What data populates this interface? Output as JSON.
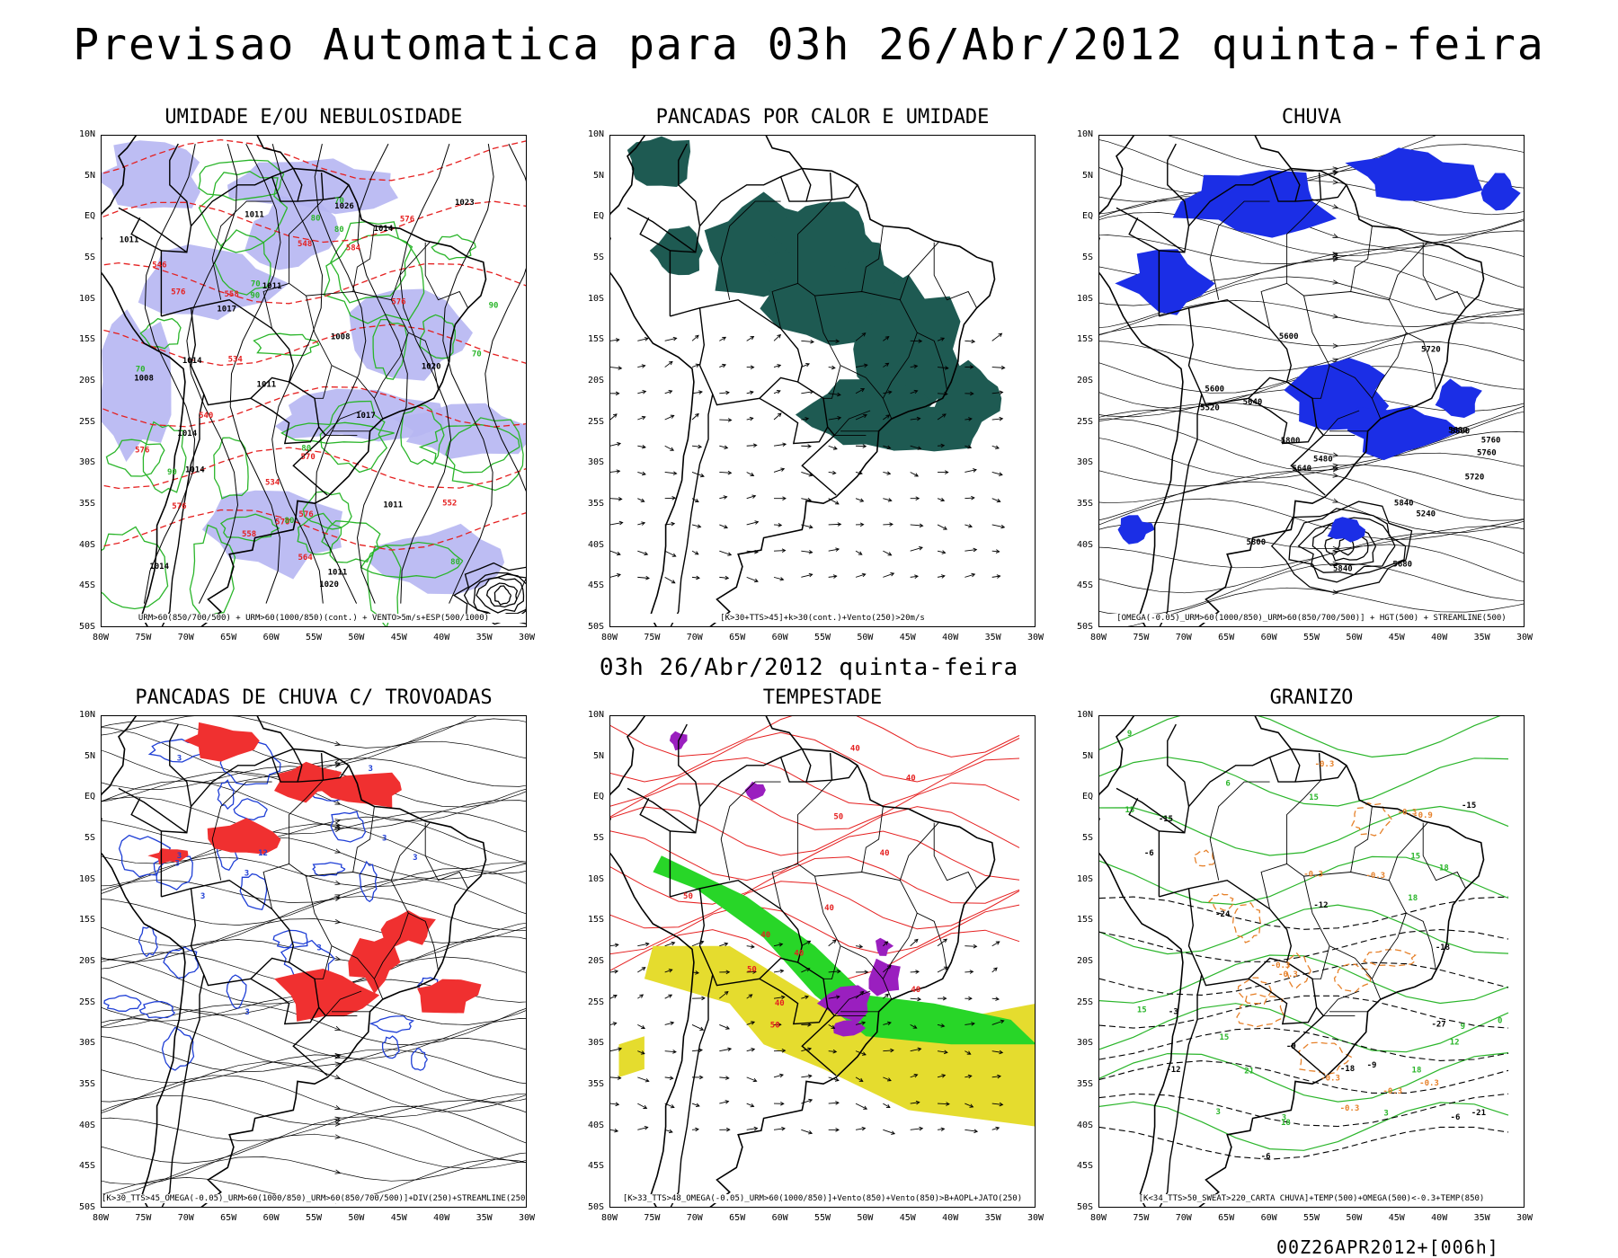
{
  "title": "Previsao Automatica para 03h 26/Abr/2012 quinta-feira",
  "middle_label": "03h 26/Abr/2012 quinta-feira",
  "footer": "00Z26APR2012+[006h]",
  "axes": {
    "lat_ticks": [
      "10N",
      "5N",
      "EQ",
      "5S",
      "10S",
      "15S",
      "20S",
      "25S",
      "30S",
      "35S",
      "40S",
      "45S",
      "50S"
    ],
    "lon_ticks": [
      "80W",
      "75W",
      "70W",
      "65W",
      "60W",
      "55W",
      "50W",
      "45W",
      "40W",
      "35W",
      "30W"
    ],
    "lat_range": [
      -50,
      10
    ],
    "lon_range": [
      -80,
      -30
    ]
  },
  "panels": [
    {
      "title": "UMIDADE E/OU NEBULOSIDADE",
      "caption": "URM>60(850/700/500) + URM>60(1000/850)(cont.) + VENTO>5m/s+ESP(500/1000)",
      "fill_color": "#b6b6f2",
      "contour_colors": [
        "#2ab52a",
        "#e52020",
        "#000000"
      ],
      "contour_labels_black": [
        "1014",
        "1011",
        "1011",
        "1011",
        "1011",
        "1014",
        "1014",
        "1011",
        "1008",
        "1008",
        "1014",
        "1017",
        "1020",
        "1023",
        "1011",
        "1017",
        "1014",
        "1020",
        "1026"
      ],
      "contour_labels_red": [
        "576",
        "576",
        "576",
        "576",
        "576",
        "570",
        "564",
        "570",
        "576",
        "558",
        "552",
        "558",
        "548",
        "540",
        "546",
        "534",
        "534",
        "584"
      ],
      "contour_labels_green": [
        "70",
        "80",
        "90",
        "80",
        "70",
        "80",
        "70",
        "90",
        "80",
        "70",
        "80",
        "90"
      ]
    },
    {
      "title": "PANCADAS POR CALOR E UMIDADE",
      "caption": "[K>30+TTS>45]+k>30(cont.)+Vento(250)>20m/s",
      "fill_color": "#1e5a52"
    },
    {
      "title": "CHUVA",
      "caption": "[OMEGA(-0.05)_URM>60(1000/850)_URM>60(850/700/500)] + HGT(500) + STREAMLINE(500)",
      "fill_color": "#1b2ee6",
      "contour_labels_black": [
        "5840",
        "5800",
        "5760",
        "5840",
        "5800",
        "5760",
        "5720",
        "5720",
        "5680",
        "5640",
        "5600",
        "5560",
        "5520",
        "5480",
        "5680",
        "5640",
        "5600",
        "5240"
      ]
    },
    {
      "title": "PANCADAS DE CHUVA C/ TROVOADAS",
      "caption": "[K>30_TTS>45_OMEGA(-0.05)_URM>60(1000/850)_URM>60(850/700/500)]+DIV(250)+STREAMLINE(250)",
      "fill_color": "#f03030",
      "contour_colors": [
        "#1f3fd6"
      ],
      "contour_labels_blue": [
        "3",
        "3",
        "3",
        "3",
        "3",
        "3",
        "3",
        "12",
        "3",
        "3",
        "3"
      ]
    },
    {
      "title": "TEMPESTADE",
      "caption": "[K>33_TTS>48_OMEGA(-0.05)_URM>60(1000/850)]+Vento(850)+Vento(850)>B+AOPL+JATO(250)",
      "fill_colors": [
        "#e5dc2e",
        "#28d628",
        "#9a1fbf"
      ],
      "contour_colors": [
        "#e52020"
      ],
      "contour_labels_red": [
        "40",
        "50",
        "40",
        "50",
        "50",
        "40",
        "40",
        "50",
        "40",
        "40",
        "40",
        "40"
      ]
    },
    {
      "title": "GRANIZO",
      "caption": "[K<34_TTS>50_SWEAT>220_CARTA CHUVA]+TEMP(500)+OMEGA(500)<-0.3+TEMP(850)",
      "contour_colors": [
        "#2ab52a",
        "#e6812a",
        "#000000"
      ],
      "contour_labels_green": [
        "18",
        "15",
        "18",
        "15",
        "21",
        "18",
        "15",
        "18",
        "15",
        "12",
        "9",
        "6",
        "3",
        "3",
        "15",
        "9",
        "3",
        "0"
      ],
      "contour_labels_orange": [
        "-0.3",
        "-0.3",
        "-0.3",
        "-0.3",
        "-0.3",
        "-0.3",
        "-0.3",
        "-0.3",
        "-0.9",
        "-0.3",
        "-0.3"
      ],
      "contour_labels_black": [
        "-6",
        "-6",
        "-6",
        "-9",
        "-9",
        "-12",
        "-12",
        "-15",
        "-15",
        "-18",
        "-18",
        "-21",
        "-24",
        "-27",
        "-3"
      ]
    }
  ]
}
